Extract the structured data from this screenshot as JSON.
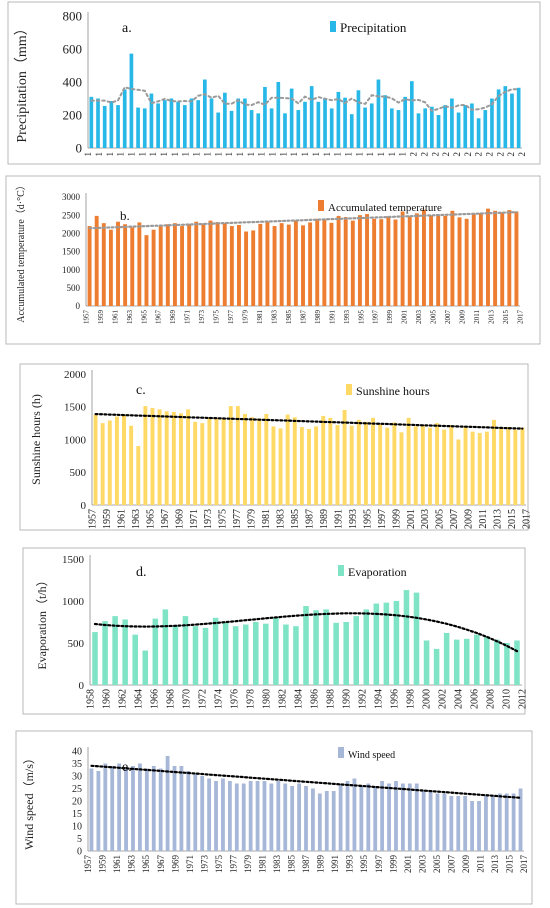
{
  "charts": [
    {
      "type": "bar",
      "panel_label": "a.",
      "ylabel": "Precipitation（mm）",
      "legend": "Precipitation",
      "legend_position": "top-right",
      "color": "#27b8e8",
      "trend": "moving-average",
      "trend_color": "#9a9a9a",
      "ylim": [
        0,
        800
      ],
      "yticks": [
        0,
        200,
        400,
        600,
        800
      ],
      "x_tick_labels": [
        "1",
        "1",
        "1",
        "1",
        "1",
        "1",
        "1",
        "1",
        "1",
        "1",
        "1",
        "1",
        "1",
        "1",
        "1",
        "1",
        "1",
        "1",
        "1",
        "1",
        "1",
        "1",
        "1",
        "1",
        "1",
        "1",
        "1",
        "1",
        "1",
        "1",
        "2",
        "2",
        "2",
        "2",
        "2",
        "2",
        "2",
        "2",
        "2",
        "2",
        "2"
      ],
      "values": [
        310,
        300,
        255,
        285,
        260,
        355,
        572,
        245,
        240,
        330,
        270,
        290,
        300,
        280,
        260,
        300,
        290,
        415,
        300,
        215,
        335,
        225,
        300,
        300,
        230,
        210,
        370,
        240,
        400,
        210,
        360,
        230,
        280,
        375,
        280,
        300,
        240,
        340,
        305,
        205,
        350,
        245,
        270,
        415,
        320,
        240,
        230,
        310,
        405,
        210,
        240,
        250,
        200,
        260,
        300,
        215,
        260,
        270,
        180,
        230,
        300,
        355,
        375,
        330,
        365
      ]
    },
    {
      "type": "bar",
      "panel_label": "b.",
      "ylabel": "Accumulated temperature（d·°C）",
      "legend": "Accumulated temperature",
      "legend_position": "top-right",
      "color": "#ed7d31",
      "trend": "linear",
      "trend_color": "#9a9a9a",
      "ylim": [
        0,
        3000
      ],
      "yticks": [
        0,
        500,
        1000,
        1500,
        2000,
        2500,
        3000
      ],
      "x_tick_labels": [
        "1957",
        "1959",
        "1961",
        "1963",
        "1965",
        "1967",
        "1969",
        "1971",
        "1973",
        "1975",
        "1977",
        "1979",
        "1981",
        "1983",
        "1985",
        "1987",
        "1989",
        "1991",
        "1993",
        "1995",
        "1997",
        "1999",
        "2001",
        "2003",
        "2005",
        "2007",
        "2009",
        "2011",
        "2013",
        "2015",
        "2017"
      ],
      "values": [
        2200,
        2480,
        2280,
        2100,
        2320,
        2250,
        2160,
        2300,
        1950,
        2100,
        2200,
        2250,
        2280,
        2200,
        2260,
        2320,
        2270,
        2350,
        2310,
        2280,
        2200,
        2230,
        2050,
        2080,
        2260,
        2320,
        2200,
        2280,
        2240,
        2350,
        2220,
        2300,
        2400,
        2380,
        2290,
        2480,
        2450,
        2350,
        2500,
        2530,
        2400,
        2390,
        2470,
        2380,
        2600,
        2480,
        2550,
        2650,
        2490,
        2520,
        2480,
        2620,
        2440,
        2400,
        2530,
        2560,
        2680,
        2620,
        2580,
        2640,
        2600
      ]
    },
    {
      "type": "bar",
      "panel_label": "c.",
      "ylabel": "Sunshine hours (h)",
      "legend": "Sunshine hours",
      "legend_position": "top-right",
      "color": "#ffd966",
      "trend": "linear",
      "trend_color": "#000000",
      "ylim": [
        0,
        2000
      ],
      "yticks": [
        0,
        500,
        1000,
        1500,
        2000
      ],
      "x_tick_labels": [
        "1957",
        "1959",
        "1961",
        "1963",
        "1965",
        "1967",
        "1969",
        "1971",
        "1973",
        "1975",
        "1977",
        "1979",
        "1981",
        "1983",
        "1985",
        "1987",
        "1989",
        "1991",
        "1993",
        "1995",
        "1997",
        "1999",
        "2001",
        "2003",
        "2005",
        "2007",
        "2009",
        "2011",
        "2013",
        "2015",
        "2017"
      ],
      "values": [
        1380,
        1250,
        1290,
        1350,
        1380,
        1210,
        900,
        1510,
        1480,
        1460,
        1430,
        1420,
        1400,
        1460,
        1270,
        1250,
        1330,
        1330,
        1330,
        1510,
        1510,
        1390,
        1340,
        1320,
        1390,
        1200,
        1170,
        1380,
        1340,
        1190,
        1160,
        1200,
        1360,
        1330,
        1220,
        1450,
        1210,
        1300,
        1270,
        1330,
        1240,
        1180,
        1260,
        1110,
        1330,
        1200,
        1220,
        1180,
        1250,
        1150,
        1220,
        1000,
        1200,
        1120,
        1100,
        1120,
        1300,
        1180,
        1190,
        1150,
        1180
      ]
    },
    {
      "type": "bar",
      "panel_label": "d.",
      "ylabel": "Evaporation（t/h）",
      "legend": "Evaporation",
      "legend_position": "top-right",
      "color": "#7fe3c5",
      "trend": "polynomial",
      "trend_color": "#000000",
      "ylim": [
        0,
        1500
      ],
      "yticks": [
        0,
        500,
        1000,
        1500
      ],
      "x_tick_labels": [
        "1958",
        "1960",
        "1962",
        "1964",
        "1966",
        "1968",
        "1970",
        "1972",
        "1974",
        "1976",
        "1978",
        "1980",
        "1982",
        "1984",
        "1986",
        "1988",
        "1990",
        "1992",
        "1994",
        "1996",
        "1998",
        "2000",
        "2002",
        "2004",
        "2006",
        "2008",
        "2010",
        "2012"
      ],
      "values": [
        630,
        760,
        820,
        780,
        600,
        410,
        790,
        900,
        700,
        820,
        700,
        680,
        800,
        750,
        700,
        720,
        750,
        730,
        800,
        720,
        700,
        940,
        890,
        900,
        740,
        750,
        820,
        900,
        970,
        980,
        1000,
        1130,
        1100,
        530,
        430,
        620,
        540,
        550,
        600,
        580,
        540,
        500,
        530
      ]
    },
    {
      "type": "bar",
      "panel_label": "e.",
      "ylabel": "Wind speed（m/s）",
      "legend": "Wind speed",
      "legend_position": "top-right",
      "color": "#a7b7d8",
      "trend": "linear",
      "trend_color": "#000000",
      "ylim": [
        0,
        40
      ],
      "yticks": [
        0,
        5,
        10,
        15,
        20,
        25,
        30,
        35,
        40
      ],
      "x_tick_labels": [
        "1957",
        "1959",
        "1961",
        "1963",
        "1965",
        "1967",
        "1969",
        "1971",
        "1973",
        "1975",
        "1977",
        "1979",
        "1981",
        "1983",
        "1985",
        "1987",
        "1989",
        "1991",
        "1993",
        "1995",
        "1997",
        "1999",
        "2001",
        "2003",
        "2005",
        "2007",
        "2009",
        "2011",
        "2013",
        "2015",
        "2017"
      ],
      "values": [
        33,
        32,
        35,
        34,
        35,
        33,
        34,
        35,
        33,
        34,
        33,
        38,
        34,
        34,
        32,
        31,
        30,
        29,
        28,
        29,
        28,
        27,
        27,
        28,
        28,
        28,
        27,
        28,
        27,
        26,
        27,
        26,
        25,
        23,
        24,
        24,
        27,
        28,
        29,
        26,
        27,
        26,
        28,
        27,
        28,
        27,
        27,
        27,
        24,
        24,
        23,
        23,
        22,
        22,
        22,
        20,
        20,
        22,
        22,
        23,
        23,
        23,
        25
      ]
    }
  ]
}
